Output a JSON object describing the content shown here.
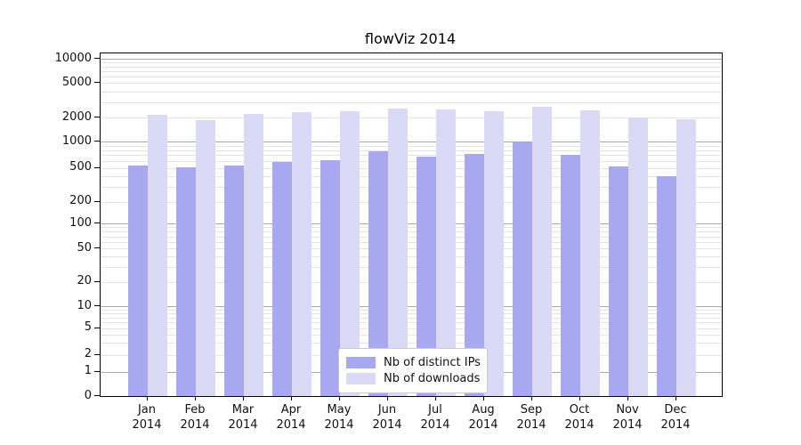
{
  "title": "flowViz 2014",
  "legend": {
    "items": [
      {
        "label": "Nb of distinct IPs",
        "color": "#a8a8f0"
      },
      {
        "label": "Nb of downloads",
        "color": "#dadaf6"
      }
    ]
  },
  "chart_data": {
    "type": "bar",
    "title": "flowViz 2014",
    "categories": [
      "Jan",
      "Feb",
      "Mar",
      "Apr",
      "May",
      "Jun",
      "Jul",
      "Aug",
      "Sep",
      "Oct",
      "Nov",
      "Dec"
    ],
    "category_year": "2014",
    "series": [
      {
        "name": "Nb of distinct IPs",
        "color": "#a8a8f0",
        "values": [
          530,
          510,
          530,
          590,
          610,
          770,
          680,
          730,
          990,
          700,
          515,
          400
        ]
      },
      {
        "name": "Nb of downloads",
        "color": "#dadaf6",
        "values": [
          2140,
          1850,
          2210,
          2290,
          2390,
          2560,
          2490,
          2350,
          2680,
          2410,
          2000,
          1890
        ]
      }
    ],
    "xlabel": "",
    "ylabel": "",
    "yscale": "symlog",
    "yticks": [
      0,
      1,
      2,
      5,
      10,
      20,
      50,
      100,
      200,
      500,
      1000,
      2000,
      5000,
      10000
    ],
    "ylim": [
      0,
      11750
    ],
    "grid": true,
    "grid_minor": true,
    "legend_position": "lower center"
  }
}
